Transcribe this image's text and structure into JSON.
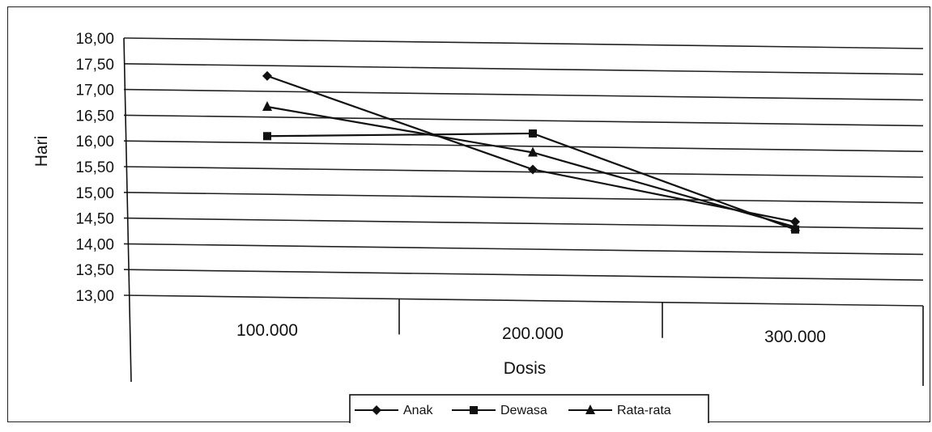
{
  "chart_data": {
    "type": "line",
    "title": "",
    "xlabel": "Dosis",
    "ylabel": "Hari",
    "categories": [
      "100.000",
      "200.000",
      "300.000"
    ],
    "ylim": [
      13.0,
      18.0
    ],
    "yticks": [
      "18,00",
      "17,50",
      "17,00",
      "16,50",
      "16,00",
      "15,50",
      "15,00",
      "14,50",
      "14,00",
      "13,50",
      "13,00"
    ],
    "grid": "horizontal",
    "legend_position": "bottom",
    "series": [
      {
        "name": "Anak",
        "marker": "diamond",
        "values": [
          17.3,
          15.55,
          14.6
        ]
      },
      {
        "name": "Dewasa",
        "marker": "square",
        "values": [
          16.13,
          16.25,
          14.45
        ]
      },
      {
        "name": "Rata-rata",
        "marker": "triangle",
        "values": [
          16.7,
          15.88,
          14.5
        ]
      }
    ],
    "colors": {
      "line": "#111111",
      "grid": "#222222"
    }
  }
}
